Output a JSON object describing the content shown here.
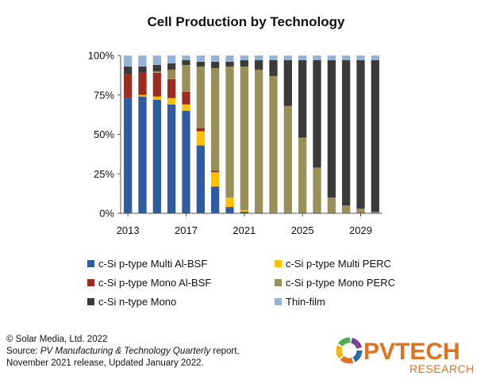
{
  "chart_data": {
    "type": "bar",
    "stacked": true,
    "title": "Cell Production by Technology",
    "categories": [
      "2013",
      "2014",
      "2015",
      "2016",
      "2017",
      "2018",
      "2019",
      "2020",
      "2021",
      "2022",
      "2023",
      "2024",
      "2025",
      "2026",
      "2027",
      "2028",
      "2029",
      "2030"
    ],
    "x_tick_labels": [
      "2013",
      "2017",
      "2021",
      "2025",
      "2029"
    ],
    "y_tick_labels": [
      "0%",
      "25%",
      "50%",
      "75%",
      "100%"
    ],
    "ylim": [
      0,
      100
    ],
    "series": [
      {
        "name": "c-Si p-type Multi Al-BSF",
        "color": "#2e5c9e",
        "values": [
          73,
          74,
          72,
          69,
          65,
          43,
          17,
          4,
          1,
          0,
          0,
          0,
          0,
          0,
          0,
          0,
          0,
          0
        ]
      },
      {
        "name": "c-Si p-type Multi PERC",
        "color": "#ffc000",
        "values": [
          0,
          1,
          2,
          4,
          4,
          9,
          9,
          6,
          1,
          0,
          0,
          0,
          0,
          0,
          0,
          0,
          0,
          0
        ]
      },
      {
        "name": "c-Si p-type Mono Al-BSF",
        "color": "#9b2c22",
        "values": [
          15,
          14,
          15,
          12,
          8,
          2,
          1,
          0,
          0,
          0,
          0,
          0,
          0,
          0,
          0,
          0,
          0,
          0
        ]
      },
      {
        "name": "c-Si p-type Mono PERC",
        "color": "#988f5a",
        "values": [
          0,
          0,
          1,
          6,
          17,
          39,
          65,
          83,
          91,
          91,
          87,
          68,
          48,
          29,
          10,
          5,
          3,
          1
        ]
      },
      {
        "name": "c-Si n-type Mono",
        "color": "#3a3a3a",
        "values": [
          5,
          4,
          4,
          4,
          3,
          3,
          4,
          3,
          4,
          6,
          10,
          29,
          49,
          68,
          87,
          92,
          94,
          96
        ]
      },
      {
        "name": "Thin-film",
        "color": "#95b3d7",
        "values": [
          7,
          7,
          6,
          5,
          3,
          4,
          4,
          4,
          3,
          3,
          3,
          3,
          3,
          3,
          3,
          3,
          3,
          3
        ]
      }
    ]
  },
  "legend_layout_note": "",
  "footer": {
    "copyright": "© Solar Media, Ltd. 2022",
    "source_prefix": "Source: ",
    "source_report": "PV Manufacturing & Technology Quarterly",
    "source_suffix": " report,",
    "release": "November  2021 release, Updated January 2022."
  },
  "logo": {
    "main_text": "PVTECH",
    "sub_text": "RESEARCH"
  }
}
